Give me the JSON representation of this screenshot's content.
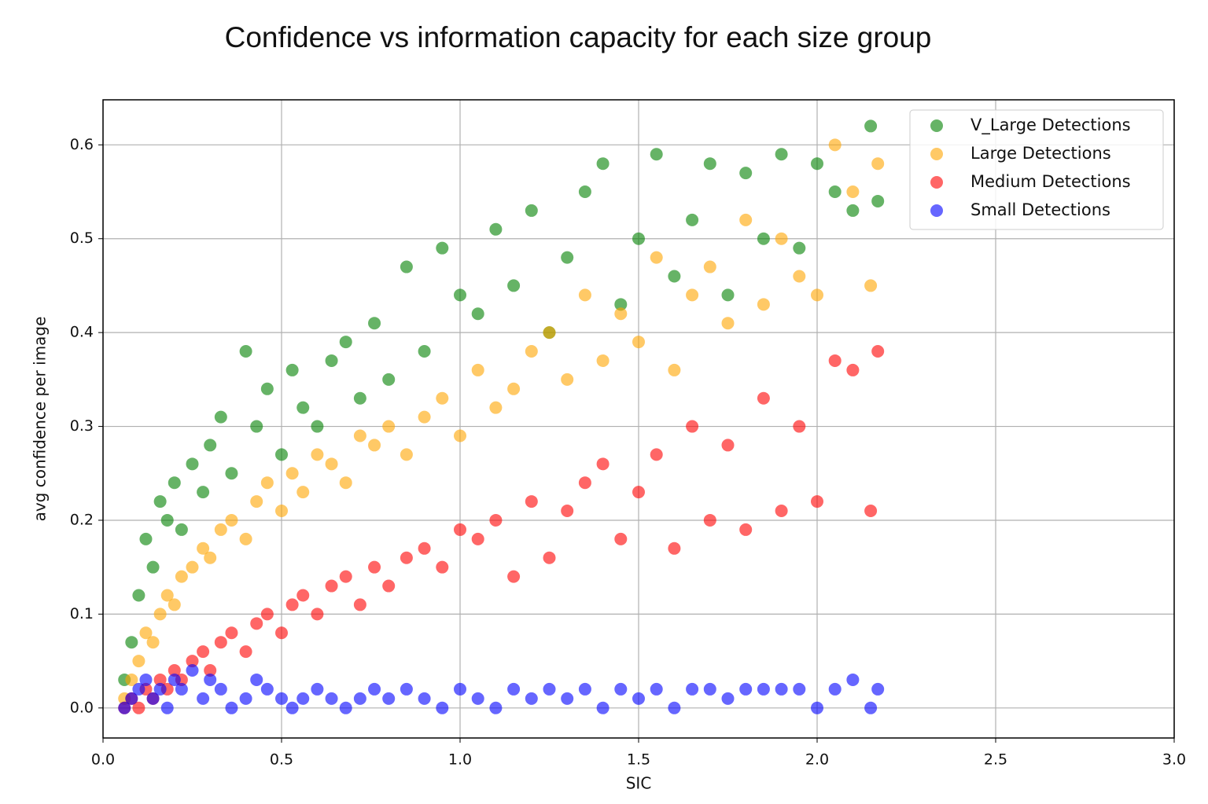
{
  "chart_data": {
    "type": "scatter",
    "title": "Confidence vs information capacity for each size group",
    "x_label": "SIC",
    "y_label": "avg confidence per image",
    "xlim": [
      0,
      3
    ],
    "ylim": [
      -0.032,
      0.648
    ],
    "xticks": [
      {
        "value": 0,
        "label": "0.0"
      },
      0.5,
      {
        "value": 1,
        "label": "1.0"
      },
      1.5,
      {
        "value": 2,
        "label": "2.0"
      },
      2.5,
      {
        "value": 3,
        "label": "3.0"
      }
    ],
    "yticks": [
      {
        "value": 0,
        "label": "0.0"
      },
      0.1,
      0.2,
      0.3,
      0.4,
      0.5,
      0.6
    ],
    "grid": true,
    "legend": "upper right",
    "series": [
      {
        "name": "V_Large Detections",
        "color": "#008000",
        "x": [
          0.06,
          0.08,
          0.1,
          0.12,
          0.14,
          0.16,
          0.18,
          0.2,
          0.22,
          0.25,
          0.28,
          0.3,
          0.33,
          0.36,
          0.4,
          0.43,
          0.46,
          0.5,
          0.53,
          0.56,
          0.6,
          0.64,
          0.68,
          0.72,
          0.76,
          0.8,
          0.85,
          0.9,
          0.95,
          1.0,
          1.05,
          1.1,
          1.15,
          1.2,
          1.25,
          1.3,
          1.35,
          1.4,
          1.45,
          1.5,
          1.55,
          1.6,
          1.65,
          1.7,
          1.75,
          1.8,
          1.85,
          1.9,
          1.95,
          2.0,
          2.05,
          2.1,
          2.15,
          2.17
        ],
        "values": [
          0.03,
          0.07,
          0.12,
          0.18,
          0.15,
          0.22,
          0.2,
          0.24,
          0.19,
          0.26,
          0.23,
          0.28,
          0.31,
          0.25,
          0.38,
          0.3,
          0.34,
          0.27,
          0.36,
          0.32,
          0.3,
          0.37,
          0.39,
          0.33,
          0.41,
          0.35,
          0.47,
          0.38,
          0.49,
          0.44,
          0.42,
          0.51,
          0.45,
          0.53,
          0.4,
          0.48,
          0.55,
          0.58,
          0.43,
          0.5,
          0.59,
          0.46,
          0.52,
          0.58,
          0.44,
          0.57,
          0.5,
          0.59,
          0.49,
          0.58,
          0.55,
          0.53,
          0.62,
          0.54
        ]
      },
      {
        "name": "Large Detections",
        "color": "#ffa500",
        "x": [
          0.06,
          0.08,
          0.1,
          0.12,
          0.14,
          0.16,
          0.18,
          0.2,
          0.22,
          0.25,
          0.28,
          0.3,
          0.33,
          0.36,
          0.4,
          0.43,
          0.46,
          0.5,
          0.53,
          0.56,
          0.6,
          0.64,
          0.68,
          0.72,
          0.76,
          0.8,
          0.85,
          0.9,
          0.95,
          1.0,
          1.05,
          1.1,
          1.15,
          1.2,
          1.25,
          1.3,
          1.35,
          1.4,
          1.45,
          1.5,
          1.55,
          1.6,
          1.65,
          1.7,
          1.75,
          1.8,
          1.85,
          1.9,
          1.95,
          2.0,
          2.05,
          2.1,
          2.15,
          2.17
        ],
        "values": [
          0.01,
          0.03,
          0.05,
          0.08,
          0.07,
          0.1,
          0.12,
          0.11,
          0.14,
          0.15,
          0.17,
          0.16,
          0.19,
          0.2,
          0.18,
          0.22,
          0.24,
          0.21,
          0.25,
          0.23,
          0.27,
          0.26,
          0.24,
          0.29,
          0.28,
          0.3,
          0.27,
          0.31,
          0.33,
          0.29,
          0.36,
          0.32,
          0.34,
          0.38,
          0.4,
          0.35,
          0.44,
          0.37,
          0.42,
          0.39,
          0.48,
          0.36,
          0.44,
          0.47,
          0.41,
          0.52,
          0.43,
          0.5,
          0.46,
          0.44,
          0.6,
          0.55,
          0.45,
          0.58
        ]
      },
      {
        "name": "Medium Detections",
        "color": "#ff0000",
        "x": [
          0.06,
          0.08,
          0.1,
          0.12,
          0.14,
          0.16,
          0.18,
          0.2,
          0.22,
          0.25,
          0.28,
          0.3,
          0.33,
          0.36,
          0.4,
          0.43,
          0.46,
          0.5,
          0.53,
          0.56,
          0.6,
          0.64,
          0.68,
          0.72,
          0.76,
          0.8,
          0.85,
          0.9,
          0.95,
          1.0,
          1.05,
          1.1,
          1.15,
          1.2,
          1.25,
          1.3,
          1.35,
          1.4,
          1.45,
          1.5,
          1.55,
          1.6,
          1.65,
          1.7,
          1.75,
          1.8,
          1.85,
          1.9,
          1.95,
          2.0,
          2.05,
          2.1,
          2.15,
          2.17
        ],
        "values": [
          0.0,
          0.01,
          0.0,
          0.02,
          0.01,
          0.03,
          0.02,
          0.04,
          0.03,
          0.05,
          0.06,
          0.04,
          0.07,
          0.08,
          0.06,
          0.09,
          0.1,
          0.08,
          0.11,
          0.12,
          0.1,
          0.13,
          0.14,
          0.11,
          0.15,
          0.13,
          0.16,
          0.17,
          0.15,
          0.19,
          0.18,
          0.2,
          0.14,
          0.22,
          0.16,
          0.21,
          0.24,
          0.26,
          0.18,
          0.23,
          0.27,
          0.17,
          0.3,
          0.2,
          0.28,
          0.19,
          0.33,
          0.21,
          0.3,
          0.22,
          0.37,
          0.36,
          0.21,
          0.38
        ]
      },
      {
        "name": "Small Detections",
        "color": "#0000ff",
        "x": [
          0.06,
          0.08,
          0.1,
          0.12,
          0.14,
          0.16,
          0.18,
          0.2,
          0.22,
          0.25,
          0.28,
          0.3,
          0.33,
          0.36,
          0.4,
          0.43,
          0.46,
          0.5,
          0.53,
          0.56,
          0.6,
          0.64,
          0.68,
          0.72,
          0.76,
          0.8,
          0.85,
          0.9,
          0.95,
          1.0,
          1.05,
          1.1,
          1.15,
          1.2,
          1.25,
          1.3,
          1.35,
          1.4,
          1.45,
          1.5,
          1.55,
          1.6,
          1.65,
          1.7,
          1.75,
          1.8,
          1.85,
          1.9,
          1.95,
          2.0,
          2.05,
          2.1,
          2.15,
          2.17
        ],
        "values": [
          0.0,
          0.01,
          0.02,
          0.03,
          0.01,
          0.02,
          0.0,
          0.03,
          0.02,
          0.04,
          0.01,
          0.03,
          0.02,
          0.0,
          0.01,
          0.03,
          0.02,
          0.01,
          0.0,
          0.01,
          0.02,
          0.01,
          0.0,
          0.01,
          0.02,
          0.01,
          0.02,
          0.01,
          0.0,
          0.02,
          0.01,
          0.0,
          0.02,
          0.01,
          0.02,
          0.01,
          0.02,
          0.0,
          0.02,
          0.01,
          0.02,
          0.0,
          0.02,
          0.02,
          0.01,
          0.02,
          0.02,
          0.02,
          0.02,
          0.0,
          0.02,
          0.03,
          0.0,
          0.02
        ]
      }
    ]
  }
}
